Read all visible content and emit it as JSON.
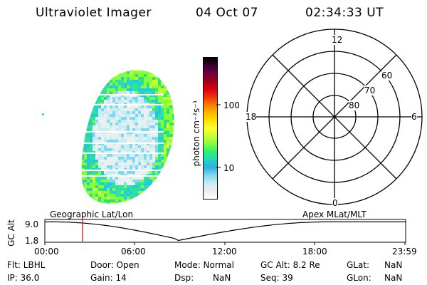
{
  "header": {
    "title": "Ultraviolet Imager",
    "date": "04 Oct 07",
    "time": "02:34:33 UT"
  },
  "colorbar": {
    "unit_label": "photon cm⁻²s⁻¹",
    "ticks": [
      "100",
      "10"
    ],
    "colors": [
      "#000000",
      "#3b0030",
      "#6c0040",
      "#a00018",
      "#d90010",
      "#f03010",
      "#fb7a00",
      "#ffb400",
      "#ffe000",
      "#fcff30",
      "#c8ff30",
      "#80ff40",
      "#30f070",
      "#20d8c0",
      "#30b0e0",
      "#80d8f0",
      "#c8ecf4",
      "#ececec",
      "#ffffff"
    ]
  },
  "polar": {
    "hour_labels": [
      "12",
      "18",
      "6",
      "0"
    ],
    "lat_labels": [
      "60",
      "70",
      "80"
    ]
  },
  "timeline": {
    "left_title": "Geographic Lat/Lon",
    "right_title": "Apex MLat/MLT",
    "y_axis_label": "GC Alt",
    "y_ticks": [
      "9.0",
      "1.8"
    ],
    "x_ticks": [
      "00:00",
      "06:00",
      "12:00",
      "18:00",
      "23:59"
    ],
    "marker_color": "#e00000"
  },
  "status": {
    "flt_label": "Flt: LBHL",
    "ip_label": "IP: 36.0",
    "door_label": "Door: Open",
    "gain_label": "Gain: 14",
    "mode_label": "Mode: Normal",
    "dsp_label": "Dsp:",
    "dsp_value": "NaN",
    "gcalt_label": "GC Alt: 8.2 Re",
    "seq_label": "Seq: 39",
    "glat_label": "GLat:",
    "glat_value": "NaN",
    "glon_label": "GLon:",
    "glon_value": "NaN"
  }
}
